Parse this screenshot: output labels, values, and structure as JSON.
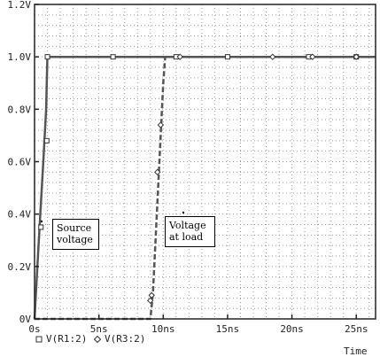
{
  "chart_data": {
    "type": "line",
    "xlabel": "Time",
    "ylabel": "",
    "x_unit": "ns",
    "xlim": [
      0,
      26.5
    ],
    "ylim": [
      0,
      1.2
    ],
    "x_ticks": [
      0,
      5,
      10,
      15,
      20,
      25
    ],
    "x_tick_labels": [
      "0s",
      "5ns",
      "10ns",
      "15ns",
      "20ns",
      "25ns"
    ],
    "y_ticks": [
      0,
      0.2,
      0.4,
      0.6,
      0.8,
      1.0,
      1.2
    ],
    "y_tick_labels": [
      "0V",
      "0.2V",
      "0.4V",
      "0.6V",
      "0.8V",
      "1.0V",
      "1.2V"
    ],
    "grid": true,
    "series": [
      {
        "name": "V(R1:2)",
        "marker": "square",
        "line": "solid",
        "color": "#555555",
        "x": [
          0,
          0.22,
          0.45,
          0.68,
          0.9,
          1.0,
          26.5
        ],
        "y": [
          0,
          0.2,
          0.4,
          0.6,
          0.8,
          1.0,
          1.0
        ],
        "marker_x": [
          0.5,
          0.95,
          1.0,
          6.1,
          11.0,
          15.0,
          21.3,
          25.0
        ],
        "marker_y": [
          0.35,
          0.68,
          1.0,
          1.0,
          1.0,
          1.0,
          1.0,
          1.0
        ]
      },
      {
        "name": "V(R3:2)",
        "marker": "diamond",
        "line": "dashed",
        "color": "#555555",
        "x": [
          0,
          9.0,
          9.2,
          9.4,
          9.6,
          9.8,
          10.0,
          10.15,
          26.5
        ],
        "y": [
          0,
          0,
          0.1,
          0.3,
          0.5,
          0.7,
          0.9,
          1.0,
          1.0
        ],
        "marker_x": [
          9.0,
          9.1,
          9.55,
          9.8,
          11.3,
          18.5,
          21.6,
          25.0
        ],
        "marker_y": [
          0.07,
          0.09,
          0.56,
          0.74,
          1.0,
          1.0,
          1.0,
          1.0
        ]
      }
    ],
    "annotations": [
      {
        "text": [
          "Source",
          "voltage"
        ]
      },
      {
        "text": [
          "Voltage",
          "at load"
        ]
      }
    ],
    "legend": [
      "V(R1:2)",
      "V(R3:2)"
    ],
    "legend_placement": "bottom-left"
  },
  "colors": {
    "axis": "#222222",
    "grid": "#9a9a9a",
    "trace": "#555555",
    "marker_fill": "#ffffff"
  }
}
